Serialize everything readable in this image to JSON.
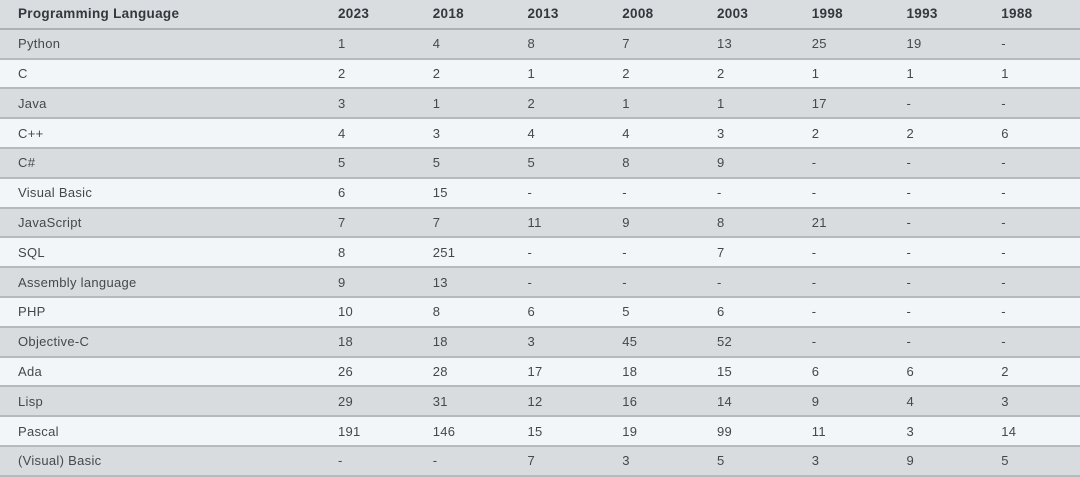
{
  "chart_data": {
    "type": "table",
    "columns": [
      "Programming Language",
      "2023",
      "2018",
      "2013",
      "2008",
      "2003",
      "1998",
      "1993",
      "1988"
    ],
    "rows": [
      [
        "Python",
        "1",
        "4",
        "8",
        "7",
        "13",
        "25",
        "19",
        "-"
      ],
      [
        "C",
        "2",
        "2",
        "1",
        "2",
        "2",
        "1",
        "1",
        "1"
      ],
      [
        "Java",
        "3",
        "1",
        "2",
        "1",
        "1",
        "17",
        "-",
        "-"
      ],
      [
        "C++",
        "4",
        "3",
        "4",
        "4",
        "3",
        "2",
        "2",
        "6"
      ],
      [
        "C#",
        "5",
        "5",
        "5",
        "8",
        "9",
        "-",
        "-",
        "-"
      ],
      [
        "Visual Basic",
        "6",
        "15",
        "-",
        "-",
        "-",
        "-",
        "-",
        "-"
      ],
      [
        "JavaScript",
        "7",
        "7",
        "11",
        "9",
        "8",
        "21",
        "-",
        "-"
      ],
      [
        "SQL",
        "8",
        "251",
        "-",
        "-",
        "7",
        "-",
        "-",
        "-"
      ],
      [
        "Assembly language",
        "9",
        "13",
        "-",
        "-",
        "-",
        "-",
        "-",
        "-"
      ],
      [
        "PHP",
        "10",
        "8",
        "6",
        "5",
        "6",
        "-",
        "-",
        "-"
      ],
      [
        "Objective-C",
        "18",
        "18",
        "3",
        "45",
        "52",
        "-",
        "-",
        "-"
      ],
      [
        "Ada",
        "26",
        "28",
        "17",
        "18",
        "15",
        "6",
        "6",
        "2"
      ],
      [
        "Lisp",
        "29",
        "31",
        "12",
        "16",
        "14",
        "9",
        "4",
        "3"
      ],
      [
        "Pascal",
        "191",
        "146",
        "15",
        "19",
        "99",
        "11",
        "3",
        "14"
      ],
      [
        "(Visual) Basic",
        "-",
        "-",
        "7",
        "3",
        "5",
        "3",
        "9",
        "5"
      ]
    ],
    "missing_value_marker": "-"
  },
  "colors": {
    "header_bg": "#d9dde0",
    "row_odd_bg": "#d8dcdf",
    "row_even_bg": "#f2f6f8",
    "divider": "#b5babd",
    "header_divider": "#acb1b4",
    "header_text": "#33383c",
    "cell_text": "#45484b",
    "page_bg": "#ffffff"
  }
}
